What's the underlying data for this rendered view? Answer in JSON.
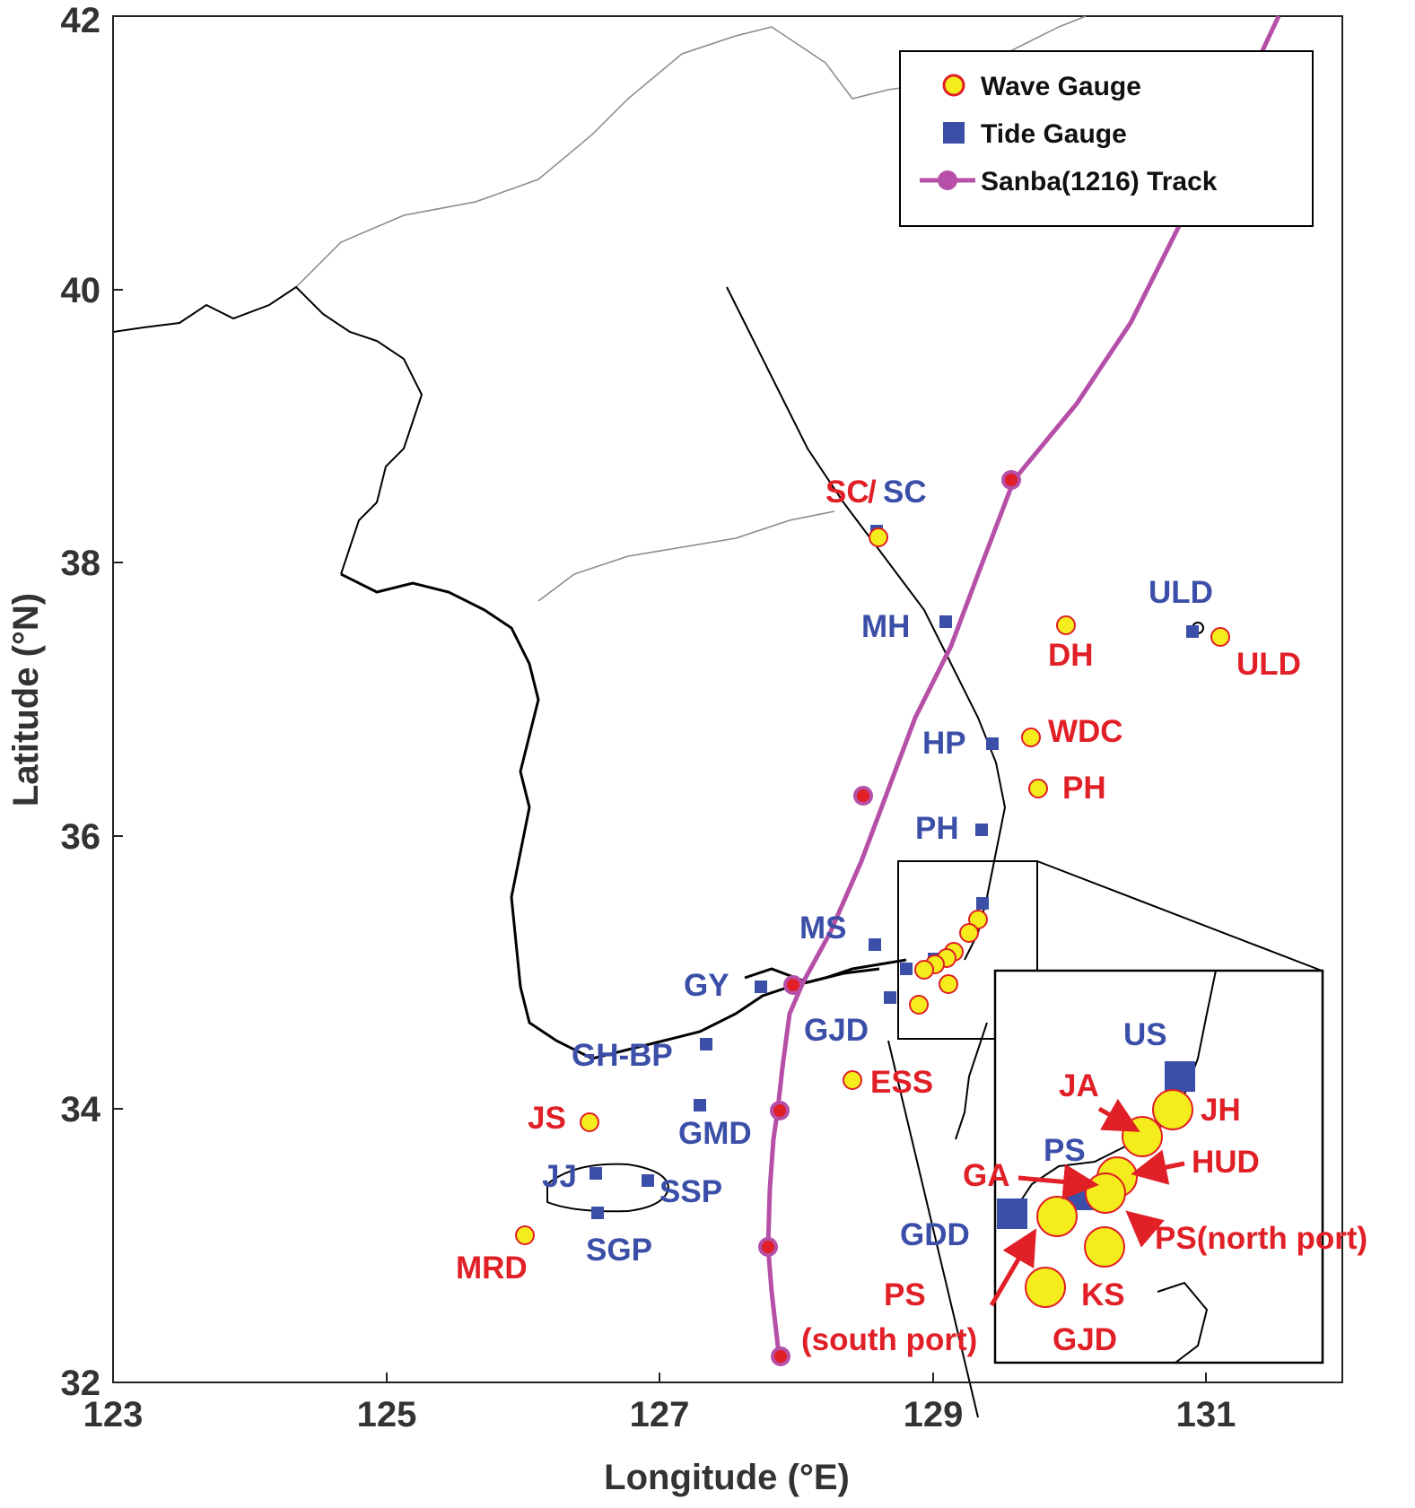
{
  "map": {
    "xlabel": "Longitude (°E)",
    "ylabel": "Latitude (°N)",
    "x_ticks": [
      "123",
      "125",
      "127",
      "129",
      "131"
    ],
    "y_ticks": [
      "42",
      "40",
      "38",
      "36",
      "34",
      "32"
    ],
    "colors": {
      "wave": "#e01f26",
      "tide": "#3b4fa8",
      "track": "#b64fa7",
      "wave_fill": "#f4ec1c",
      "coast": "#000000"
    },
    "legend": [
      {
        "icon": "wave-gauge-icon",
        "label": "Wave Gauge"
      },
      {
        "icon": "tide-gauge-icon",
        "label": "Tide Gauge"
      },
      {
        "icon": "track-icon",
        "label": "Sanba(1216) Track"
      }
    ],
    "wave_labels": [
      "SC",
      "DH",
      "ULD",
      "WDC",
      "PH",
      "ESS",
      "JS",
      "MRD"
    ],
    "tide_labels": [
      "SC",
      "MH",
      "ULD",
      "HP",
      "PH",
      "MS",
      "GY",
      "GJD",
      "GH-BP",
      "GMD",
      "JJ",
      "SSP",
      "SGP"
    ],
    "inset": {
      "tide_labels": [
        "US",
        "PS",
        "GDD"
      ],
      "wave_labels": [
        "JA",
        "JH",
        "GA",
        "HUD",
        "PS(north port)",
        "KS",
        "PS",
        "(south port)",
        "GJD"
      ]
    }
  }
}
